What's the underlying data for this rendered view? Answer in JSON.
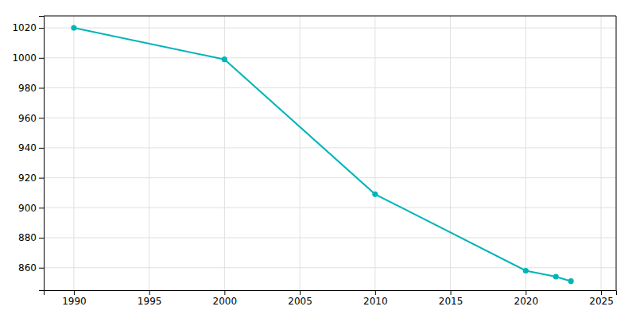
{
  "chart_data": {
    "type": "line",
    "x": [
      1990,
      2000,
      2010,
      2020,
      2022,
      2023
    ],
    "values": [
      1020,
      999,
      909,
      858,
      854,
      851
    ],
    "color": "#00B5B8",
    "marker": "circle",
    "xlim": [
      1988,
      2026
    ],
    "ylim": [
      845,
      1028
    ],
    "xticks": [
      1990,
      1995,
      2000,
      2005,
      2010,
      2015,
      2020,
      2025
    ],
    "yticks": [
      860,
      880,
      900,
      920,
      940,
      960,
      980,
      1000,
      1020
    ],
    "grid": true
  }
}
